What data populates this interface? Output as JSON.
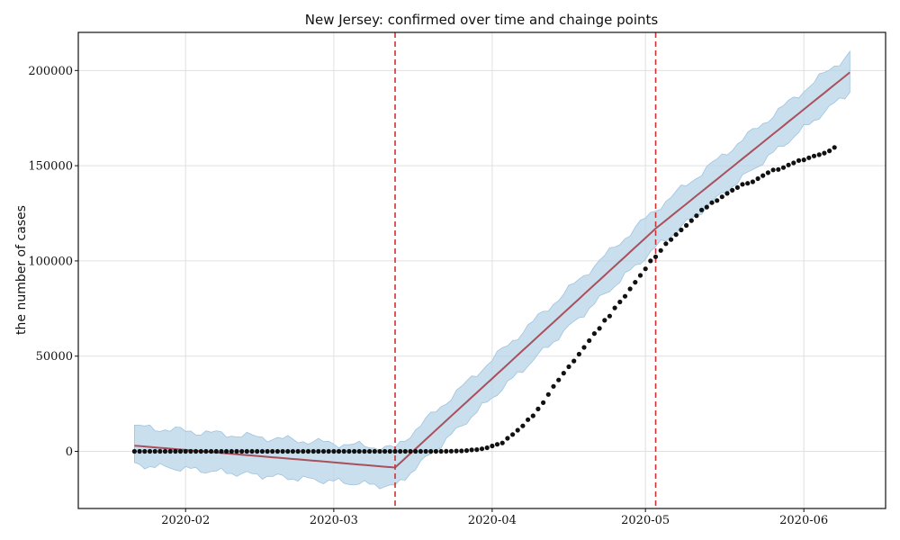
{
  "chart_data": {
    "type": "line",
    "title": "New Jersey: confirmed over time and chainge points",
    "xlabel": "",
    "ylabel": "the number of cases",
    "x_range": [
      "2020-01-11",
      "2020-06-17"
    ],
    "ylim": [
      -30000,
      220000
    ],
    "x_ticks": [
      {
        "date": "2020-02-01",
        "label": "2020-02"
      },
      {
        "date": "2020-03-01",
        "label": "2020-03"
      },
      {
        "date": "2020-04-01",
        "label": "2020-04"
      },
      {
        "date": "2020-05-01",
        "label": "2020-05"
      },
      {
        "date": "2020-06-01",
        "label": "2020-06"
      }
    ],
    "y_ticks": [
      0,
      50000,
      100000,
      150000,
      200000
    ],
    "grid": true,
    "colors": {
      "observed": "#111111",
      "trend": "#a8505c",
      "band": "#b8d4e8",
      "changepoint": "#cc3333",
      "axes": "#111111",
      "grid": "#e0e0e0"
    },
    "observed": {
      "start_date": "2020-01-22",
      "end_date": "2020-05-30",
      "values": [
        0,
        0,
        0,
        0,
        0,
        0,
        0,
        0,
        0,
        0,
        0,
        0,
        0,
        0,
        0,
        0,
        0,
        0,
        0,
        0,
        0,
        0,
        0,
        0,
        0,
        0,
        0,
        0,
        0,
        0,
        0,
        0,
        0,
        0,
        0,
        0,
        0,
        0,
        0,
        0,
        0,
        0,
        0,
        0,
        0,
        0,
        0,
        0,
        0,
        0,
        0,
        0,
        0,
        0,
        1,
        2,
        4,
        6,
        11,
        25,
        29,
        69,
        98,
        178,
        267,
        427,
        742,
        890,
        1327,
        1914,
        2844,
        3675,
        4402,
        6876,
        8825,
        11124,
        13386,
        16636,
        18696,
        22255,
        25590,
        29895,
        34124,
        37505,
        41090,
        44416,
        47437,
        51027,
        54588,
        58151,
        61850,
        64584,
        68824,
        71030,
        75317,
        78467,
        81420,
        85301,
        88806,
        92387,
        95865,
        99989,
        102196,
        105498,
        109038,
        111188,
        113856,
        116264,
        118652,
        121190,
        123717,
        126744,
        128269,
        130593,
        131705,
        133635,
        135454,
        137085,
        138532,
        140206,
        140743,
        141560,
        143194,
        144825,
        146334,
        147775,
        148039,
        149013,
        150399,
        151472,
        152719,
        153104,
        154154,
        155092,
        155764,
        156628,
        157815,
        159608
      ]
    },
    "trend": {
      "points": [
        {
          "date": "2020-01-22",
          "value": 3000
        },
        {
          "date": "2020-03-13",
          "value": -8500
        },
        {
          "date": "2020-05-03",
          "value": 117000
        },
        {
          "date": "2020-06-10",
          "value": 199000
        }
      ],
      "band_half_width": 10000
    },
    "changepoints": [
      "2020-03-13",
      "2020-05-03"
    ]
  }
}
